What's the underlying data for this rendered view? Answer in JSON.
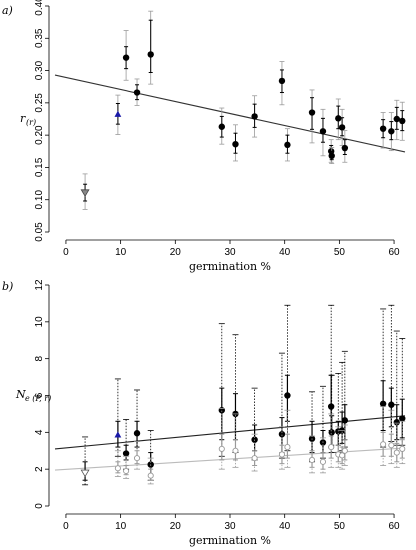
{
  "chart_data": [
    {
      "type": "scatter",
      "panel_label": "a)",
      "ylabel": "r",
      "ylabel_sub": "(r)",
      "xlabel": "germination %",
      "xlim": [
        -2,
        62
      ],
      "ylim": [
        0.05,
        0.4
      ],
      "x_ticks": [
        0,
        10,
        20,
        30,
        40,
        50,
        60
      ],
      "y_ticks": [
        0.05,
        0.1,
        0.15,
        0.2,
        0.25,
        0.3,
        0.35,
        0.4
      ],
      "y_tick_labels": [
        "0.05",
        "0.10",
        "0.15",
        "0.20",
        "0.25",
        "0.30",
        "0.35",
        "0.40"
      ],
      "trend_lines": [
        {
          "x0": -2,
          "y0": 0.293,
          "x1": 62,
          "y1": 0.174,
          "color": "#333333"
        }
      ],
      "series": [
        {
          "marker": "circle",
          "color": "#000000",
          "points": [
            {
              "x": 11.0,
              "y": 0.32,
              "inner": [
                0.303,
                0.337
              ],
              "outer": [
                0.285,
                0.362
              ]
            },
            {
              "x": 13.0,
              "y": 0.266,
              "inner": [
                0.255,
                0.278
              ],
              "outer": [
                0.246,
                0.287
              ]
            },
            {
              "x": 15.5,
              "y": 0.325,
              "inner": [
                0.297,
                0.378
              ],
              "outer": [
                0.279,
                0.392
              ]
            },
            {
              "x": 28.5,
              "y": 0.213,
              "inner": [
                0.197,
                0.229
              ],
              "outer": [
                0.186,
                0.242
              ]
            },
            {
              "x": 31.0,
              "y": 0.186,
              "inner": [
                0.172,
                0.203
              ],
              "outer": [
                0.16,
                0.216
              ]
            },
            {
              "x": 34.5,
              "y": 0.229,
              "inner": [
                0.212,
                0.248
              ],
              "outer": [
                0.197,
                0.261
              ]
            },
            {
              "x": 39.5,
              "y": 0.284,
              "inner": [
                0.266,
                0.301
              ],
              "outer": [
                0.247,
                0.314
              ]
            },
            {
              "x": 40.5,
              "y": 0.185,
              "inner": [
                0.172,
                0.2
              ],
              "outer": [
                0.16,
                0.21
              ]
            },
            {
              "x": 45.0,
              "y": 0.235,
              "inner": [
                0.209,
                0.258
              ],
              "outer": [
                0.188,
                0.27
              ]
            },
            {
              "x": 47.0,
              "y": 0.206,
              "inner": [
                0.189,
                0.226
              ],
              "outer": [
                0.168,
                0.24
              ]
            },
            {
              "x": 48.5,
              "y": 0.175,
              "inner": [
                0.166,
                0.184
              ],
              "outer": [
                0.158,
                0.193
              ]
            },
            {
              "x": 48.6,
              "y": 0.168,
              "inner": [
                0.162,
                0.175
              ],
              "outer": [
                0.156,
                0.181
              ]
            },
            {
              "x": 49.8,
              "y": 0.226,
              "inner": [
                0.21,
                0.245
              ],
              "outer": [
                0.193,
                0.256
              ]
            },
            {
              "x": 50.5,
              "y": 0.212,
              "inner": [
                0.199,
                0.227
              ],
              "outer": [
                0.184,
                0.24
              ]
            },
            {
              "x": 51.0,
              "y": 0.18,
              "inner": [
                0.17,
                0.193
              ],
              "outer": [
                0.158,
                0.207
              ]
            },
            {
              "x": 58.0,
              "y": 0.21,
              "inner": [
                0.196,
                0.224
              ],
              "outer": [
                0.18,
                0.235
              ]
            },
            {
              "x": 59.5,
              "y": 0.206,
              "inner": [
                0.193,
                0.221
              ],
              "outer": [
                0.176,
                0.235
              ]
            },
            {
              "x": 60.5,
              "y": 0.225,
              "inner": [
                0.209,
                0.243
              ],
              "outer": [
                0.193,
                0.254
              ]
            },
            {
              "x": 61.5,
              "y": 0.222,
              "inner": [
                0.207,
                0.238
              ],
              "outer": [
                0.192,
                0.251
              ]
            }
          ]
        },
        {
          "marker": "triangle-up",
          "color": "#1a1aa8",
          "points": [
            {
              "x": 9.5,
              "y": 0.232,
              "inner": [
                0.217,
                0.249
              ],
              "outer": [
                0.201,
                0.262
              ]
            }
          ]
        },
        {
          "marker": "triangle-down",
          "color": "#888888",
          "points": [
            {
              "x": 3.5,
              "y": 0.111,
              "inner": [
                0.098,
                0.124
              ],
              "outer": [
                0.085,
                0.14
              ]
            }
          ]
        }
      ]
    },
    {
      "type": "scatter",
      "panel_label": "b)",
      "ylabel": "N",
      "ylabel_sub": "e (P, r)",
      "xlabel": "germination %",
      "xlim": [
        -2,
        62
      ],
      "ylim": [
        0,
        12
      ],
      "x_ticks": [
        0,
        10,
        20,
        30,
        40,
        50,
        60
      ],
      "y_ticks": [
        0,
        2,
        4,
        6,
        8,
        10,
        12
      ],
      "y_tick_labels": [
        "0",
        "2",
        "4",
        "6",
        "8",
        "10",
        "12"
      ],
      "trend_lines": [
        {
          "x0": -2,
          "y0": 3.1,
          "x1": 62,
          "y1": 4.9,
          "color": "#222222"
        },
        {
          "x0": -2,
          "y0": 1.95,
          "x1": 62,
          "y1": 3.15,
          "color": "#bbbbbb"
        }
      ],
      "series": [
        {
          "marker": "circle",
          "color": "#000000",
          "dotted_color": "#000000",
          "points": [
            {
              "x": 11.0,
              "y": 2.85,
              "inner": [
                2.5,
                3.3
              ],
              "outer": [
                2.0,
                4.7
              ]
            },
            {
              "x": 13.0,
              "y": 3.95,
              "inner": [
                3.2,
                4.6
              ],
              "outer": [
                2.6,
                6.3
              ]
            },
            {
              "x": 15.5,
              "y": 2.25,
              "inner": [
                1.7,
                2.9
              ],
              "outer": [
                1.4,
                4.1
              ]
            },
            {
              "x": 28.5,
              "y": 5.2,
              "inner": [
                3.6,
                6.4
              ],
              "outer": [
                2.7,
                9.9
              ]
            },
            {
              "x": 31.0,
              "y": 5.0,
              "inner": [
                3.6,
                6.1
              ],
              "outer": [
                2.9,
                9.3
              ]
            },
            {
              "x": 34.5,
              "y": 3.6,
              "inner": [
                3.0,
                4.4
              ],
              "outer": [
                2.5,
                6.4
              ]
            },
            {
              "x": 39.5,
              "y": 3.9,
              "inner": [
                2.9,
                4.8
              ],
              "outer": [
                2.6,
                8.3
              ]
            },
            {
              "x": 40.5,
              "y": 6.0,
              "inner": [
                4.6,
                7.1
              ],
              "outer": [
                3.0,
                10.9
              ]
            },
            {
              "x": 45.0,
              "y": 3.65,
              "inner": [
                2.9,
                4.6
              ],
              "outer": [
                2.4,
                6.2
              ]
            },
            {
              "x": 47.0,
              "y": 3.45,
              "inner": [
                2.9,
                4.1
              ],
              "outer": [
                2.6,
                6.5
              ]
            },
            {
              "x": 48.5,
              "y": 5.4,
              "inner": [
                4.1,
                7.1
              ],
              "outer": [
                3.2,
                10.9
              ]
            },
            {
              "x": 48.6,
              "y": 4.0,
              "inner": [
                3.3,
                4.9
              ],
              "outer": [
                2.9,
                7.1
              ]
            },
            {
              "x": 49.8,
              "y": 4.05,
              "inner": [
                3.3,
                4.6
              ],
              "outer": [
                2.9,
                7.2
              ]
            },
            {
              "x": 50.5,
              "y": 4.1,
              "inner": [
                3.4,
                5.1
              ],
              "outer": [
                3.0,
                7.8
              ]
            },
            {
              "x": 51.0,
              "y": 4.65,
              "inner": [
                3.6,
                5.5
              ],
              "outer": [
                3.2,
                8.4
              ]
            },
            {
              "x": 58.0,
              "y": 5.55,
              "inner": [
                4.1,
                6.8
              ],
              "outer": [
                3.2,
                10.7
              ]
            },
            {
              "x": 59.5,
              "y": 5.5,
              "inner": [
                4.3,
                6.4
              ],
              "outer": [
                3.5,
                10.9
              ]
            },
            {
              "x": 60.5,
              "y": 4.55,
              "inner": [
                3.6,
                5.5
              ],
              "outer": [
                3.3,
                9.5
              ]
            },
            {
              "x": 61.5,
              "y": 4.75,
              "inner": [
                3.7,
                5.8
              ],
              "outer": [
                3.3,
                9.1
              ]
            }
          ]
        },
        {
          "marker": "triangle-up",
          "color": "#1a1aa8",
          "dotted_color": "#000000",
          "points": [
            {
              "x": 9.5,
              "y": 3.85,
              "inner": [
                3.2,
                4.6
              ],
              "outer": [
                2.7,
                6.9
              ]
            }
          ]
        },
        {
          "marker": "triangle-down",
          "color": "#ffffff",
          "stroke": "#555555",
          "dotted_color": "#000000",
          "points": [
            {
              "x": 3.5,
              "y": 1.8,
              "inner": [
                1.4,
                2.4
              ],
              "outer": [
                1.15,
                3.75
              ]
            }
          ]
        },
        {
          "marker": "circle-open",
          "color": "#999999",
          "dotted_color": "#999999",
          "points": [
            {
              "x": 9.5,
              "y": 2.05,
              "inner": [
                1.8,
                2.4
              ],
              "outer": [
                1.6,
                3.0
              ]
            },
            {
              "x": 11.0,
              "y": 1.9,
              "inner": [
                1.7,
                2.2
              ],
              "outer": [
                1.5,
                2.7
              ]
            },
            {
              "x": 13.0,
              "y": 2.6,
              "inner": [
                2.3,
                3.0
              ],
              "outer": [
                2.0,
                3.5
              ]
            },
            {
              "x": 15.5,
              "y": 1.65,
              "inner": [
                1.4,
                2.0
              ],
              "outer": [
                1.2,
                2.6
              ]
            },
            {
              "x": 28.5,
              "y": 3.1,
              "inner": [
                2.5,
                3.9
              ],
              "outer": [
                2.0,
                5.3
              ]
            },
            {
              "x": 31.0,
              "y": 3.0,
              "inner": [
                2.5,
                3.6
              ],
              "outer": [
                2.1,
                5.0
              ]
            },
            {
              "x": 34.5,
              "y": 2.6,
              "inner": [
                2.2,
                3.0
              ],
              "outer": [
                1.9,
                3.9
              ]
            },
            {
              "x": 39.5,
              "y": 2.8,
              "inner": [
                2.3,
                3.3
              ],
              "outer": [
                2.0,
                4.3
              ]
            },
            {
              "x": 40.5,
              "y": 3.2,
              "inner": [
                2.6,
                3.9
              ],
              "outer": [
                2.1,
                5.2
              ]
            },
            {
              "x": 45.0,
              "y": 2.5,
              "inner": [
                2.1,
                3.0
              ],
              "outer": [
                1.8,
                3.8
              ]
            },
            {
              "x": 47.0,
              "y": 2.4,
              "inner": [
                2.0,
                2.9
              ],
              "outer": [
                1.8,
                3.7
              ]
            },
            {
              "x": 48.5,
              "y": 3.2,
              "inner": [
                2.6,
                3.8
              ],
              "outer": [
                2.1,
                5.0
              ]
            },
            {
              "x": 49.8,
              "y": 2.8,
              "inner": [
                2.4,
                3.3
              ],
              "outer": [
                2.1,
                4.3
              ]
            },
            {
              "x": 50.5,
              "y": 2.75,
              "inner": [
                2.3,
                3.2
              ],
              "outer": [
                2.0,
                4.1
              ]
            },
            {
              "x": 51.0,
              "y": 3.0,
              "inner": [
                2.5,
                3.6
              ],
              "outer": [
                2.2,
                4.4
              ]
            },
            {
              "x": 58.0,
              "y": 3.35,
              "inner": [
                2.7,
                4.0
              ],
              "outer": [
                2.2,
                5.4
              ]
            },
            {
              "x": 59.5,
              "y": 3.3,
              "inner": [
                2.7,
                3.9
              ],
              "outer": [
                2.3,
                5.2
              ]
            },
            {
              "x": 60.5,
              "y": 2.9,
              "inner": [
                2.4,
                3.4
              ],
              "outer": [
                2.1,
                4.5
              ]
            },
            {
              "x": 61.5,
              "y": 3.1,
              "inner": [
                2.6,
                3.6
              ],
              "outer": [
                2.3,
                4.6
              ]
            }
          ]
        }
      ]
    }
  ]
}
